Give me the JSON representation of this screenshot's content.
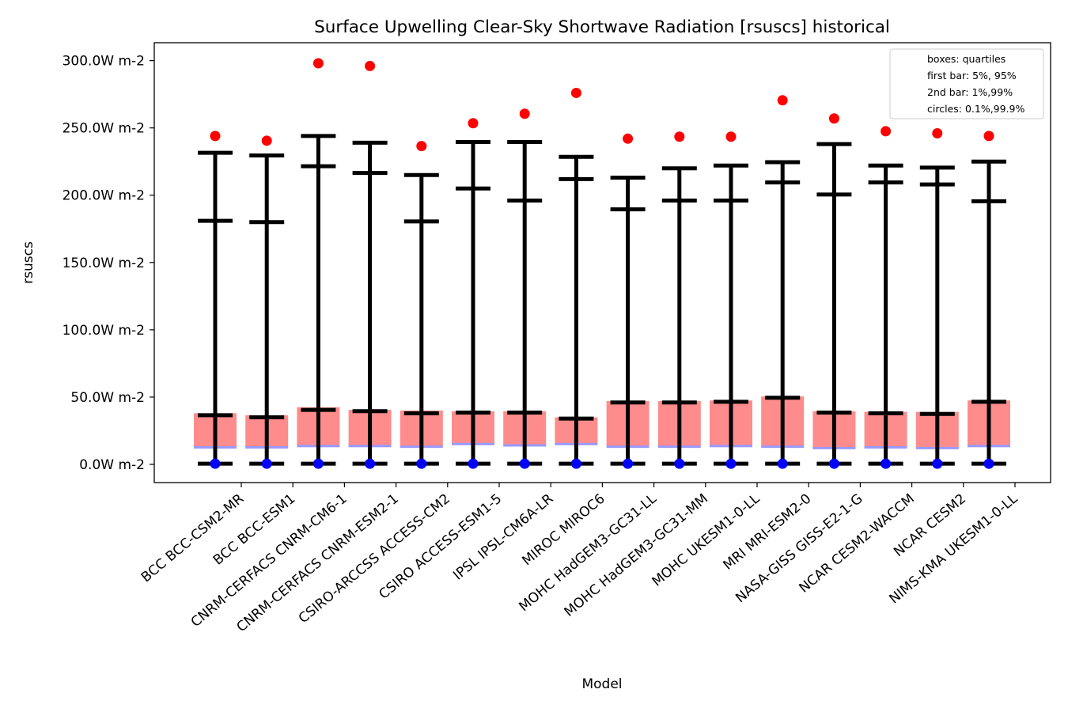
{
  "chart_data": {
    "type": "box",
    "title": "Surface Upwelling Clear-Sky Shortwave Radiation [rsuscs] historical",
    "xlabel": "Model",
    "ylabel": "rsuscs",
    "y_unit_suffix": "W m-2",
    "ylim": [
      -14,
      314
    ],
    "yticks": [
      0,
      50,
      100,
      150,
      200,
      250,
      300
    ],
    "ytick_labels": [
      "0.0W m-2",
      "50.0W m-2",
      "100.0W m-2",
      "150.0W m-2",
      "200.0W m-2",
      "250.0W m-2",
      "300.0W m-2"
    ],
    "grid": false,
    "legend_position": "top-right",
    "legend": [
      "boxes: quartiles",
      "first bar: 5%, 95%",
      "2nd bar: 1%,99%",
      "circles: 0.1%,99.9%"
    ],
    "colors": {
      "box": "#ff8c8c",
      "median": "#9999ff",
      "whisker": "#000000",
      "high_circle": "#ff0000",
      "low_circle": "#0000ff"
    },
    "categories": [
      "BCC BCC-CSM2-MR",
      "BCC BCC-ESM1",
      "CNRM-CERFACS CNRM-CM6-1",
      "CNRM-CERFACS CNRM-ESM2-1",
      "CSIRO-ARCCSS ACCESS-CM2",
      "CSIRO ACCESS-ESM1-5",
      "IPSL IPSL-CM6A-LR",
      "MIROC MIROC6",
      "MOHC HadGEM3-GC31-LL",
      "MOHC HadGEM3-GC31-MM",
      "MOHC UKESM1-0-LL",
      "MRI MRI-ESM2-0",
      "NASA-GISS GISS-E2-1-G",
      "NCAR CESM2-WACCM",
      "NCAR CESM2",
      "NIMS-KMA UKESM1-0-LL"
    ],
    "q1": [
      12.5,
      12.5,
      13.5,
      13.5,
      13,
      15,
      14,
      15,
      13,
      13,
      13.5,
      12.5,
      11.5,
      12,
      12,
      13.5
    ],
    "median": [
      13.5,
      13.5,
      14.5,
      14.5,
      14,
      16,
      15,
      16,
      14,
      14,
      14.5,
      14,
      13,
      13.5,
      13,
      14.5
    ],
    "q3": [
      38,
      36.5,
      42.5,
      40.5,
      40,
      39.5,
      39.5,
      35,
      47,
      47,
      47.5,
      50.5,
      39.5,
      39,
      39,
      47.5
    ],
    "p1": [
      0.5,
      0.5,
      0.5,
      0.5,
      0.5,
      0.5,
      0.5,
      0.5,
      0.5,
      0.5,
      0.5,
      0.5,
      0.5,
      0.5,
      0.5,
      0.5
    ],
    "p5": [
      36.5,
      35,
      40.5,
      39.5,
      38,
      38.5,
      38.5,
      34,
      46,
      46,
      46.5,
      49.5,
      38.5,
      38,
      37.5,
      46.5
    ],
    "p95": [
      181,
      180,
      221.5,
      216.5,
      180.5,
      205,
      196,
      212,
      189.5,
      196,
      196,
      209.5,
      200.5,
      209.5,
      208,
      195.5
    ],
    "p99": [
      231.5,
      229.5,
      244,
      239,
      215,
      239.5,
      239.5,
      228.5,
      213,
      220,
      222,
      224.5,
      238,
      222,
      220.5,
      225
    ],
    "p0_1": [
      0.5,
      0.5,
      0.5,
      0.5,
      0.5,
      0.5,
      0.5,
      0.5,
      0.5,
      0.5,
      0.5,
      0.5,
      0.5,
      0.5,
      0.5,
      0.5
    ],
    "p99_9": [
      244,
      240.5,
      298,
      296,
      236.5,
      253.5,
      260.5,
      276,
      242,
      243.5,
      243.5,
      270.5,
      257,
      247.5,
      246,
      244
    ]
  }
}
